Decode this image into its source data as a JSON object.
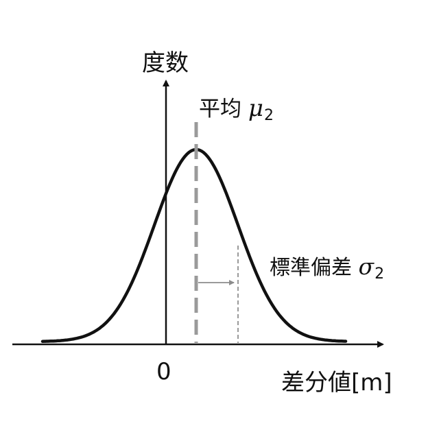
{
  "labels": {
    "y_axis": "度数",
    "x_axis": "差分値[m]",
    "origin": "0",
    "mean_text": "平均",
    "mean_symbol": "μ",
    "mean_subscript": "2",
    "std_text": "標準偏差",
    "std_symbol": "σ",
    "std_subscript": "2"
  },
  "colors": {
    "curve": "#111111",
    "axes": "#111111",
    "mean_line": "#9a9a9a",
    "std_line": "#9a9a9a",
    "std_arrow": "#8c8c8c"
  },
  "distribution": {
    "type": "normal",
    "mean": 1,
    "std_dev": 1,
    "origin_value": 0
  }
}
